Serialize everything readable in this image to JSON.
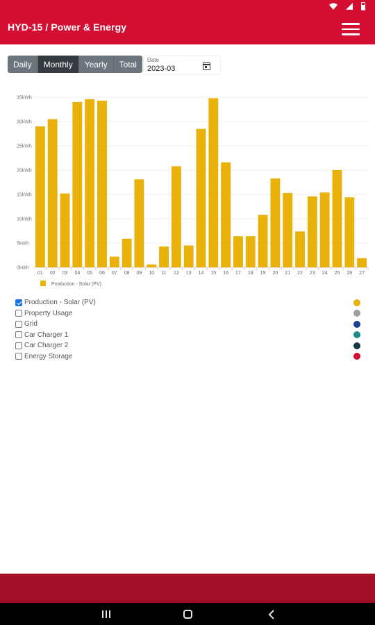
{
  "app": {
    "title": "HYD-15 / Power & Energy"
  },
  "period_tabs": [
    {
      "label": "Daily",
      "active": false
    },
    {
      "label": "Monthly",
      "active": true
    },
    {
      "label": "Yearly",
      "active": false
    },
    {
      "label": "Total",
      "active": false
    }
  ],
  "date_picker": {
    "label": "Date",
    "value": "2023-03"
  },
  "chart_data": {
    "type": "bar",
    "categories": [
      "01",
      "02",
      "03",
      "04",
      "05",
      "06",
      "07",
      "08",
      "09",
      "10",
      "11",
      "12",
      "13",
      "14",
      "15",
      "16",
      "17",
      "18",
      "19",
      "20",
      "21",
      "22",
      "23",
      "24",
      "25",
      "26",
      "27"
    ],
    "series": [
      {
        "name": "Production - Solar (PV)",
        "color": "#e8b20a",
        "values": [
          29,
          30.5,
          15.2,
          34,
          34.6,
          34.3,
          2.2,
          5.9,
          18.1,
          0.6,
          4.3,
          20.8,
          4.5,
          28.5,
          34.8,
          21.6,
          6.4,
          6.4,
          10.8,
          18.3,
          15.3,
          7.4,
          14.6,
          15.4,
          20,
          14.4,
          1.9
        ]
      }
    ],
    "y_ticks": [
      "0kWh",
      "5kWh",
      "10kWh",
      "15kWh",
      "20kWh",
      "25kWh",
      "30kWh",
      "35kWh"
    ],
    "ylim": [
      0,
      35
    ],
    "grid": true,
    "legend_position": "bottom-left"
  },
  "series_toggles": [
    {
      "label": "Production - Solar (PV)",
      "checked": true,
      "color": "#e8b20a"
    },
    {
      "label": "Property Usage",
      "checked": false,
      "color": "#9e9e9e"
    },
    {
      "label": "Grid",
      "checked": false,
      "color": "#1e3f96"
    },
    {
      "label": "Car Charger 1",
      "checked": false,
      "color": "#1a8a8c"
    },
    {
      "label": "Car Charger 2",
      "checked": false,
      "color": "#123a40"
    },
    {
      "label": "Energy Storage",
      "checked": false,
      "color": "#d50f33"
    }
  ],
  "icons": {
    "menu": "hamburger-menu-icon",
    "calendar": "calendar-icon",
    "nav_recent": "recent-apps-icon",
    "nav_home": "home-icon",
    "nav_back": "back-icon"
  }
}
